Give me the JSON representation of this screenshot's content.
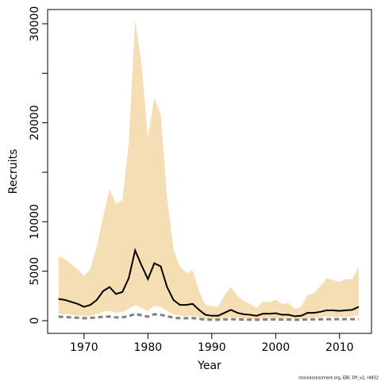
{
  "chart_data": {
    "type": "line",
    "xlabel": "Year",
    "ylabel": "Recruits",
    "footer": "stockassessment.org, EBC DP_v2, r4832",
    "x": [
      1966,
      1967,
      1968,
      1969,
      1970,
      1971,
      1972,
      1973,
      1974,
      1975,
      1976,
      1977,
      1978,
      1979,
      1980,
      1981,
      1982,
      1983,
      1984,
      1985,
      1986,
      1987,
      1988,
      1989,
      1990,
      1991,
      1992,
      1993,
      1994,
      1995,
      1996,
      1997,
      1998,
      1999,
      2000,
      2001,
      2002,
      2003,
      2004,
      2005,
      2006,
      2007,
      2008,
      2009,
      2010,
      2011,
      2012,
      2013
    ],
    "band": {
      "color": "#f5deb3",
      "upper": [
        6500,
        6200,
        5700,
        5200,
        4500,
        5300,
        7500,
        10500,
        13300,
        11800,
        12200,
        18000,
        30300,
        26000,
        18500,
        22500,
        20800,
        12500,
        7200,
        5500,
        4800,
        5100,
        3000,
        1600,
        1500,
        1400,
        2600,
        3400,
        2500,
        2000,
        1700,
        1300,
        1900,
        1900,
        2100,
        1700,
        1800,
        1200,
        1400,
        2600,
        2800,
        3500,
        4300,
        4100,
        3900,
        4200,
        4200,
        5500
      ],
      "lower": [
        700,
        650,
        600,
        520,
        450,
        500,
        650,
        900,
        1000,
        800,
        850,
        1200,
        1600,
        1300,
        1000,
        1500,
        1400,
        1000,
        650,
        500,
        450,
        500,
        350,
        200,
        180,
        170,
        280,
        350,
        270,
        230,
        200,
        160,
        220,
        220,
        240,
        200,
        210,
        150,
        170,
        280,
        300,
        350,
        420,
        400,
        380,
        400,
        410,
        500
      ]
    },
    "series": [
      {
        "color": "#000000",
        "dashed": false,
        "width": 2,
        "values": [
          2200,
          2100,
          1900,
          1700,
          1400,
          1600,
          2100,
          3000,
          3400,
          2700,
          2900,
          4300,
          7100,
          5600,
          4200,
          5800,
          5500,
          3400,
          2100,
          1600,
          1600,
          1700,
          1100,
          600,
          500,
          500,
          800,
          1100,
          800,
          650,
          600,
          500,
          700,
          700,
          750,
          600,
          600,
          450,
          500,
          800,
          800,
          900,
          1050,
          1050,
          1000,
          1050,
          1100,
          1400
        ]
      },
      {
        "color": "#808080",
        "dashed": true,
        "width": 3,
        "values": [
          400,
          380,
          330,
          300,
          250,
          280,
          330,
          400,
          420,
          330,
          350,
          450,
          700,
          550,
          400,
          650,
          600,
          450,
          300,
          250,
          250,
          270,
          180,
          110,
          100,
          100,
          130,
          160,
          130,
          110,
          100,
          90,
          120,
          120,
          130,
          110,
          110,
          90,
          100,
          130,
          130,
          140,
          150,
          150,
          150,
          150,
          150,
          160
        ]
      }
    ],
    "xlim": [
      1964.3,
      2015.0
    ],
    "ylim": [
      -1280,
      31440
    ],
    "xticks": [
      1970,
      1980,
      1990,
      2000,
      2010
    ],
    "yticks": [
      0,
      5000,
      10000,
      20000,
      30000
    ],
    "yminor_ticks": [
      15000,
      25000
    ]
  }
}
